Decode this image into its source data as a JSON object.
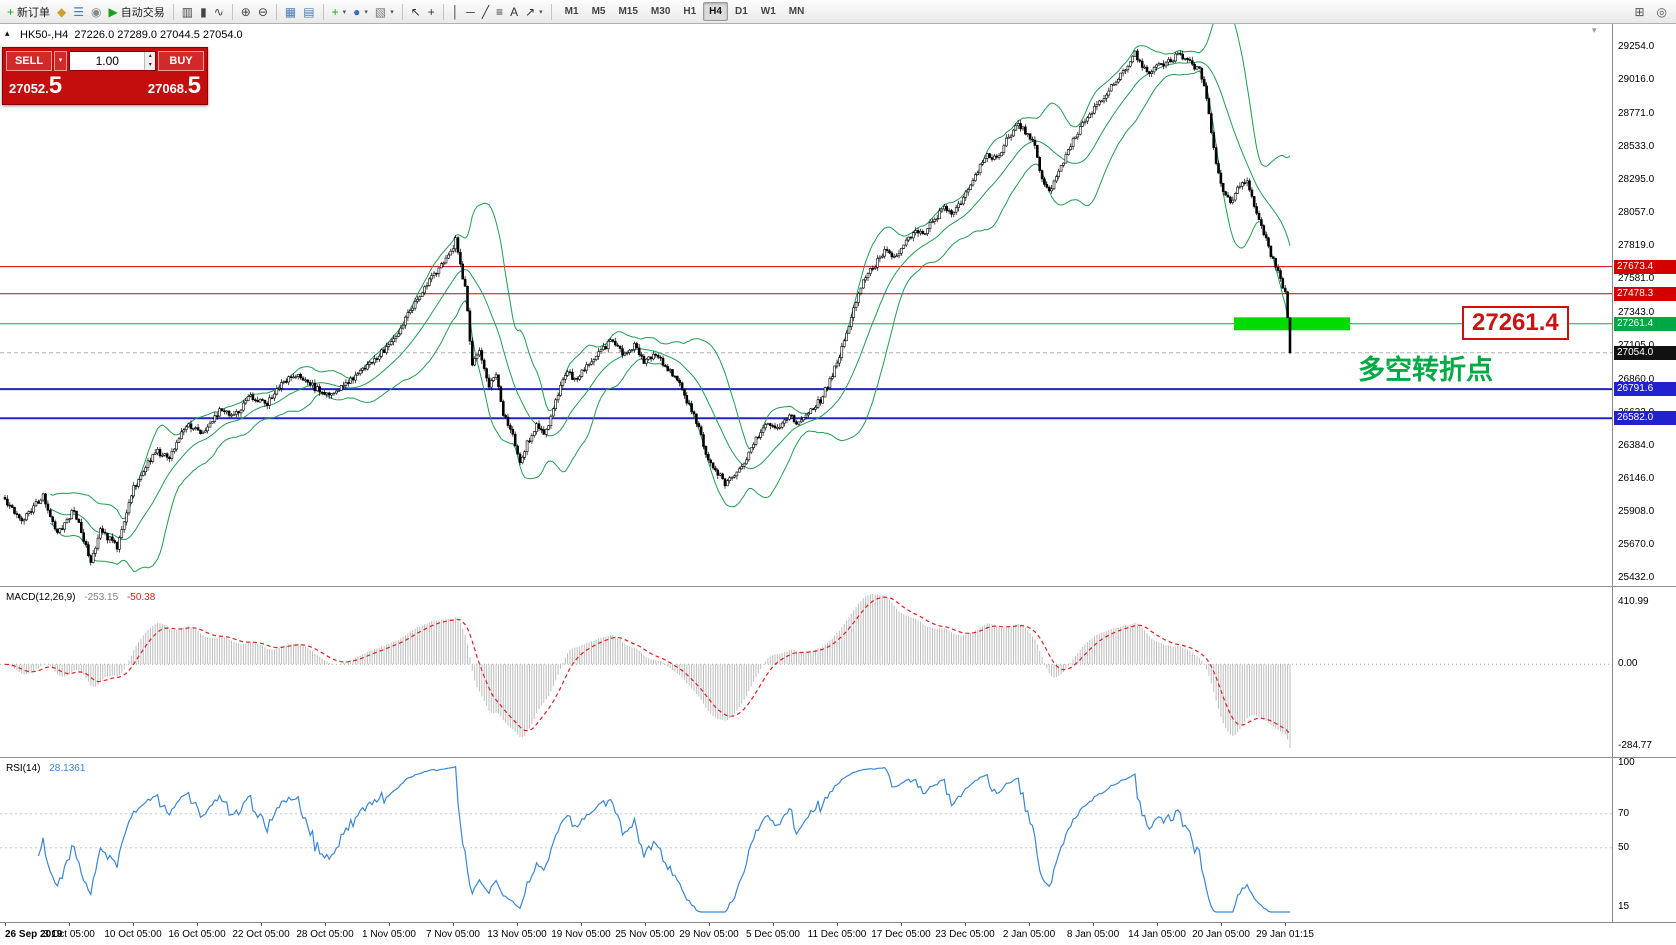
{
  "glyphs": {
    "collapse": "▴",
    "shift_marker": "▾",
    "caret_down": "▾",
    "spin_up": "▴",
    "spin_down": "▾"
  },
  "toolbar": {
    "groups": [
      [
        {
          "name": "new-order",
          "glyph": "+",
          "color": "#0faf0f",
          "label": "新订单"
        },
        {
          "name": "chart-window",
          "glyph": "◆",
          "color": "#cf9f2f"
        },
        {
          "name": "market-watch",
          "glyph": "☰",
          "color": "#4a7ebb"
        },
        {
          "name": "data-window",
          "glyph": "◉",
          "color": "#888888"
        },
        {
          "name": "autotrading",
          "glyph": "▶",
          "color": "#17a117",
          "label": "自动交易"
        }
      ],
      [
        {
          "name": "bar-chart",
          "glyph": "▥",
          "color": "#444444"
        },
        {
          "name": "candlestick-chart",
          "glyph": "▮",
          "color": "#444444"
        },
        {
          "name": "line-chart",
          "glyph": "∿",
          "color": "#444444"
        }
      ],
      [
        {
          "name": "zoom-in",
          "glyph": "⊕",
          "color": "#444444"
        },
        {
          "name": "zoom-out",
          "glyph": "⊖",
          "color": "#444444"
        }
      ],
      [
        {
          "name": "tile-windows",
          "glyph": "▦",
          "color": "#4a7ebb"
        },
        {
          "name": "auto-arrange",
          "glyph": "▤",
          "color": "#4a7ebb"
        }
      ],
      [
        {
          "name": "indicators",
          "glyph": "+",
          "color": "#0faf0f",
          "caret": true
        },
        {
          "name": "periods",
          "glyph": "●",
          "color": "#3a6ebf",
          "caret": true
        },
        {
          "name": "templates",
          "glyph": "▧",
          "color": "#777777",
          "caret": true
        }
      ],
      [
        {
          "name": "cursor",
          "glyph": "↖",
          "color": "#333333"
        },
        {
          "name": "crosshair",
          "glyph": "+",
          "color": "#333333"
        }
      ],
      [
        {
          "name": "vertical-line",
          "glyph": "│",
          "color": "#333333"
        },
        {
          "name": "horizontal-line",
          "glyph": "─",
          "color": "#333333"
        },
        {
          "name": "trendline",
          "glyph": "╱",
          "color": "#333333"
        },
        {
          "name": "fibonacci",
          "glyph": "≡",
          "color": "#333333"
        },
        {
          "name": "text",
          "glyph": "A",
          "color": "#333333"
        },
        {
          "name": "arrows",
          "glyph": "↗",
          "color": "#333333",
          "caret": true
        }
      ]
    ],
    "timeframes": [
      "M1",
      "M5",
      "M15",
      "M30",
      "H1",
      "H4",
      "D1",
      "W1",
      "MN"
    ],
    "active_timeframe": "H4",
    "right_icons": [
      {
        "name": "new-chart",
        "glyph": "⊞",
        "color": "#555555"
      },
      {
        "name": "search",
        "glyph": "◎",
        "color": "#555555"
      }
    ]
  },
  "chart": {
    "symbol_period": "HK50-,H4",
    "ohlc_text": "27226.0 27289.0 27044.5 27054.0"
  },
  "trade_panel": {
    "sell_label": "SELL",
    "buy_label": "BUY",
    "volume": "1.00",
    "sell_price_small": "27052.",
    "sell_price_big": "5",
    "buy_price_small": "27068.",
    "buy_price_big": "5"
  },
  "annotations": {
    "turning_point": "多空转折点",
    "turning_point_color": "#00aa44",
    "price_callout": "27261.4",
    "callout_color": "#cc1111"
  },
  "colors": {
    "panel_red": "#c40d0d",
    "resistance_red": "#d40000",
    "support_blue": "#2222cc",
    "key_green": "#00b050",
    "highlight_green": "#00dc00",
    "bollinger_green": "#1e9e50",
    "macd_histogram": "#bdbdbd",
    "macd_signal": "#e02020",
    "rsi_blue": "#3a86d4"
  },
  "chart_data": {
    "type": "candlestick",
    "symbol": "HK50-",
    "timeframe": "H4",
    "bars": 540,
    "y_range": [
      25432.0,
      29254.0
    ],
    "price_ticks": [
      "29254.0",
      "29016.0",
      "28771.0",
      "28533.0",
      "28295.0",
      "28057.0",
      "27819.0",
      "27581.0",
      "27343.0",
      "27105.0",
      "26860.0",
      "26622.0",
      "26384.0",
      "26146.0",
      "25908.0",
      "25670.0",
      "25432.0"
    ],
    "time_ticks": [
      "26 Sep 2019",
      "3 Oct 05:00",
      "10 Oct 05:00",
      "16 Oct 05:00",
      "22 Oct 05:00",
      "28 Oct 05:00",
      "1 Nov 05:00",
      "7 Nov 05:00",
      "13 Nov 05:00",
      "19 Nov 05:00",
      "25 Nov 05:00",
      "29 Nov 05:00",
      "5 Dec 05:00",
      "11 Dec 05:00",
      "17 Dec 05:00",
      "23 Dec 05:00",
      "2 Jan 05:00",
      "8 Jan 05:00",
      "14 Jan 05:00",
      "20 Jan 05:00",
      "29 Jan 01:15"
    ],
    "price_keyframes": [
      [
        0,
        26000
      ],
      [
        7,
        25850
      ],
      [
        16,
        26020
      ],
      [
        22,
        25760
      ],
      [
        29,
        25920
      ],
      [
        36,
        25560
      ],
      [
        40,
        25770
      ],
      [
        47,
        25660
      ],
      [
        54,
        26080
      ],
      [
        63,
        26350
      ],
      [
        69,
        26290
      ],
      [
        76,
        26540
      ],
      [
        83,
        26480
      ],
      [
        90,
        26640
      ],
      [
        96,
        26590
      ],
      [
        103,
        26740
      ],
      [
        110,
        26690
      ],
      [
        116,
        26840
      ],
      [
        123,
        26900
      ],
      [
        130,
        26800
      ],
      [
        136,
        26750
      ],
      [
        143,
        26820
      ],
      [
        150,
        26940
      ],
      [
        157,
        27040
      ],
      [
        163,
        27140
      ],
      [
        168,
        27290
      ],
      [
        172,
        27430
      ],
      [
        177,
        27540
      ],
      [
        181,
        27640
      ],
      [
        186,
        27740
      ],
      [
        189,
        27860
      ],
      [
        193,
        27520
      ],
      [
        196,
        26960
      ],
      [
        199,
        27060
      ],
      [
        203,
        26820
      ],
      [
        206,
        26900
      ],
      [
        209,
        26620
      ],
      [
        213,
        26450
      ],
      [
        216,
        26260
      ],
      [
        219,
        26400
      ],
      [
        223,
        26540
      ],
      [
        226,
        26460
      ],
      [
        230,
        26640
      ],
      [
        233,
        26800
      ],
      [
        236,
        26930
      ],
      [
        239,
        26850
      ],
      [
        243,
        26940
      ],
      [
        247,
        27000
      ],
      [
        251,
        27090
      ],
      [
        255,
        27140
      ],
      [
        259,
        27050
      ],
      [
        264,
        27100
      ],
      [
        268,
        26980
      ],
      [
        273,
        27040
      ],
      [
        277,
        26950
      ],
      [
        282,
        26860
      ],
      [
        286,
        26710
      ],
      [
        291,
        26520
      ],
      [
        294,
        26320
      ],
      [
        298,
        26210
      ],
      [
        302,
        26110
      ],
      [
        306,
        26160
      ],
      [
        311,
        26300
      ],
      [
        315,
        26440
      ],
      [
        320,
        26540
      ],
      [
        324,
        26500
      ],
      [
        329,
        26590
      ],
      [
        333,
        26550
      ],
      [
        338,
        26650
      ],
      [
        342,
        26710
      ],
      [
        347,
        26890
      ],
      [
        351,
        27090
      ],
      [
        356,
        27380
      ],
      [
        360,
        27580
      ],
      [
        365,
        27690
      ],
      [
        369,
        27790
      ],
      [
        374,
        27740
      ],
      [
        378,
        27850
      ],
      [
        382,
        27950
      ],
      [
        385,
        27890
      ],
      [
        389,
        28000
      ],
      [
        394,
        28090
      ],
      [
        398,
        28050
      ],
      [
        403,
        28190
      ],
      [
        407,
        28340
      ],
      [
        412,
        28490
      ],
      [
        416,
        28440
      ],
      [
        420,
        28590
      ],
      [
        425,
        28690
      ],
      [
        428,
        28640
      ],
      [
        432,
        28540
      ],
      [
        435,
        28300
      ],
      [
        438,
        28210
      ],
      [
        443,
        28400
      ],
      [
        447,
        28550
      ],
      [
        452,
        28700
      ],
      [
        456,
        28790
      ],
      [
        461,
        28890
      ],
      [
        465,
        28990
      ],
      [
        470,
        29090
      ],
      [
        474,
        29210
      ],
      [
        479,
        29060
      ],
      [
        483,
        29110
      ],
      [
        488,
        29150
      ],
      [
        492,
        29200
      ],
      [
        497,
        29140
      ],
      [
        501,
        29090
      ],
      [
        504,
        28900
      ],
      [
        508,
        28420
      ],
      [
        511,
        28210
      ],
      [
        514,
        28140
      ],
      [
        518,
        28260
      ],
      [
        521,
        28310
      ],
      [
        524,
        28110
      ],
      [
        528,
        27910
      ],
      [
        531,
        27760
      ],
      [
        534,
        27650
      ],
      [
        537,
        27480
      ],
      [
        538,
        27320
      ],
      [
        539,
        27054
      ]
    ],
    "horizontal_lines": [
      {
        "price": 27673.4,
        "label": "27673.4",
        "color": "#d40000",
        "width": 1,
        "style": "solid",
        "badge": "#d40000"
      },
      {
        "price": 27478.3,
        "label": "27478.3",
        "color": "#d40000",
        "width": 1,
        "style": "solid",
        "badge": "#d40000"
      },
      {
        "price": 27261.4,
        "label": "27261.4",
        "color": "#00b050",
        "width": 1,
        "style": "solid",
        "badge": "#00a843"
      },
      {
        "price": 27054.0,
        "label": "27054.0",
        "color": "#b0b0b0",
        "width": 1,
        "style": "dashed",
        "badge": "#111111"
      },
      {
        "price": 26791.6,
        "label": "26791.6",
        "color": "#2222cc",
        "width": 2,
        "style": "solid",
        "badge": "#2222cc"
      },
      {
        "price": 26582.0,
        "label": "26582.0",
        "color": "#2222cc",
        "width": 2,
        "style": "solid",
        "badge": "#2222cc"
      }
    ],
    "highlight": {
      "price": 27261.4,
      "x": 1234,
      "width": 116,
      "height": 13,
      "color": "#00dc00"
    },
    "indicators": {
      "bollinger": {
        "period": 20,
        "deviation": 2,
        "color": "#1e9e50"
      },
      "macd": {
        "label": "MACD(12,26,9)",
        "main_value": "-253.15",
        "signal_value": "-50.38",
        "axis_labels": [
          "410.99",
          "0.00",
          "-284.77"
        ],
        "histogram_color": "#bdbdbd",
        "signal_color": "#e02020"
      },
      "rsi": {
        "label": "RSI(14)",
        "value": "28.1361",
        "axis_labels": [
          "100",
          "70",
          "50",
          "15"
        ],
        "levels": [
          70,
          50
        ],
        "color": "#3a86d4"
      }
    }
  }
}
